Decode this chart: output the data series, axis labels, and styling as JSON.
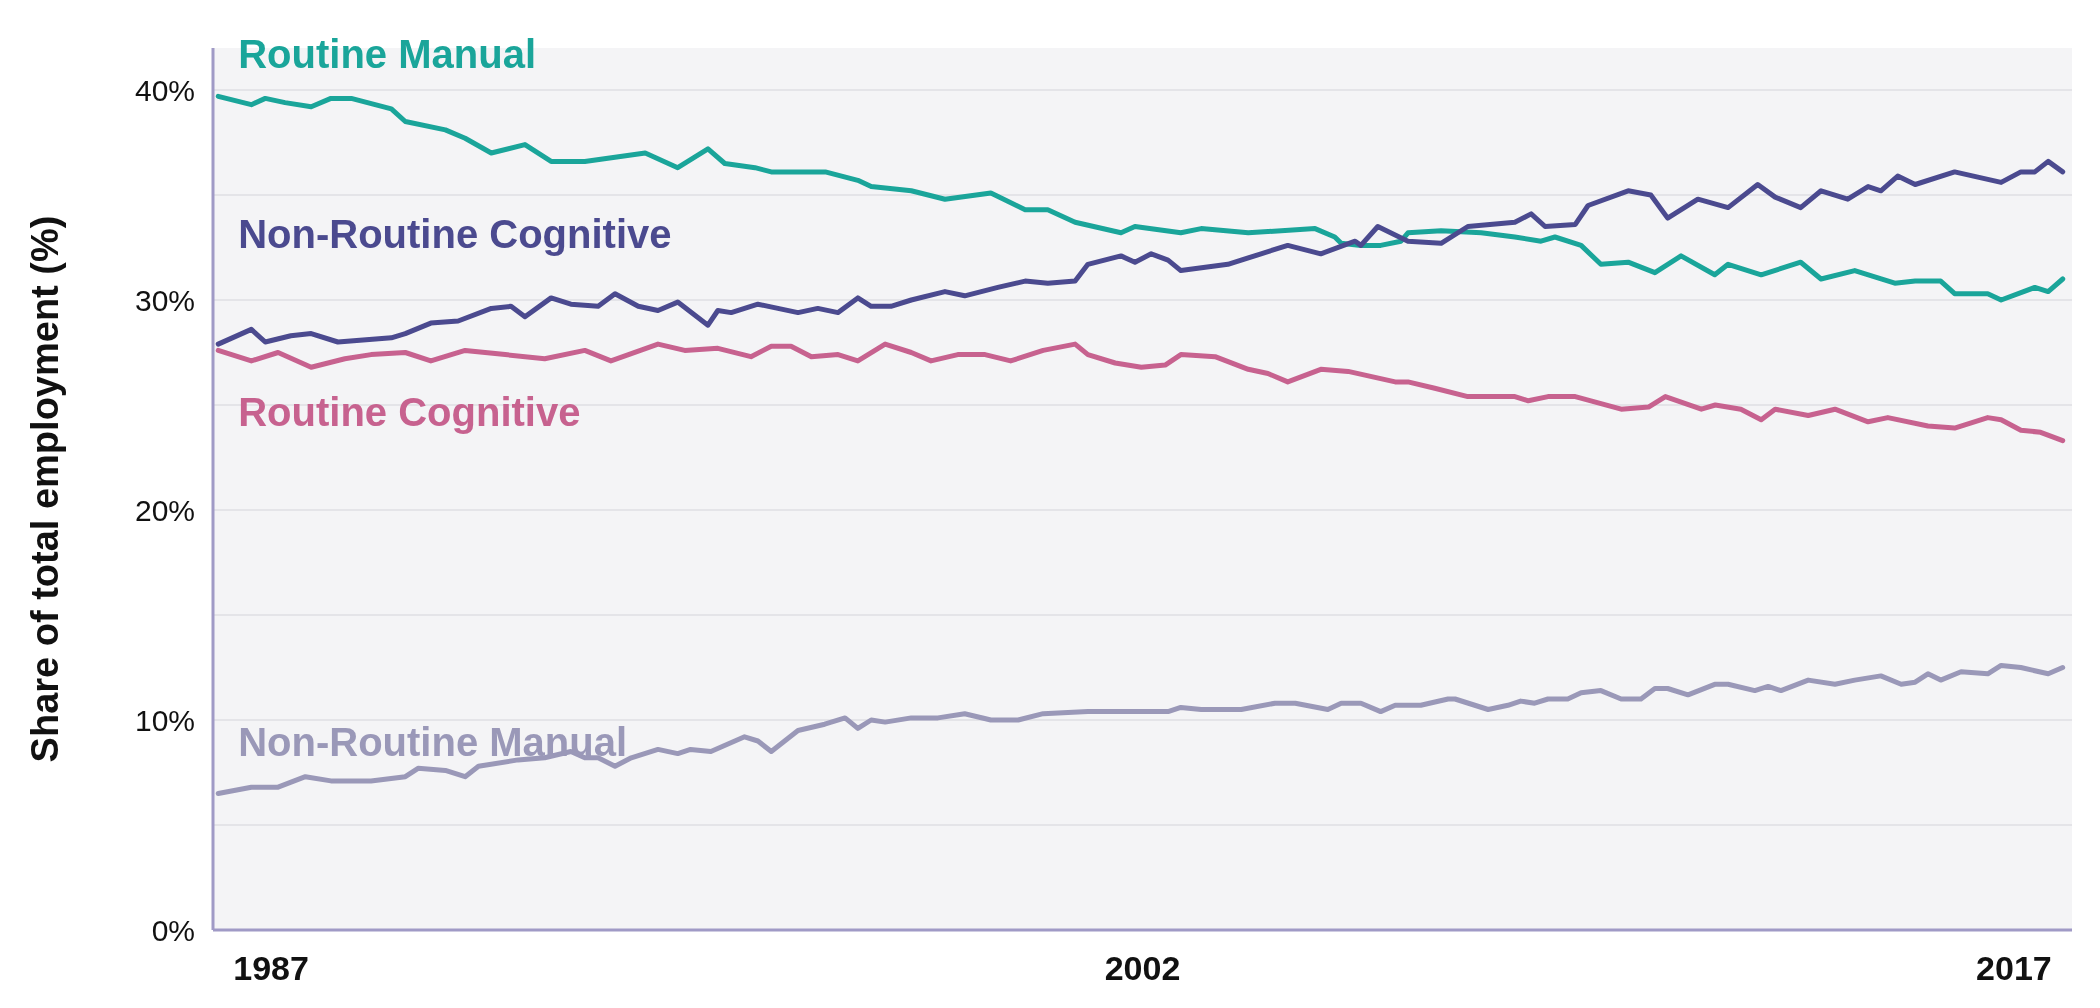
{
  "chart_data": {
    "type": "line",
    "ylabel": "Share of total employment (%)",
    "xlim": [
      1986,
      2018
    ],
    "xticks": [
      1987,
      2002,
      2017
    ],
    "ylim": [
      0,
      42
    ],
    "yticks": [
      {
        "value": 0,
        "label": "0%"
      },
      {
        "value": 5,
        "label": null
      },
      {
        "value": 10,
        "label": "10%"
      },
      {
        "value": 15,
        "label": null
      },
      {
        "value": 20,
        "label": "20%"
      },
      {
        "value": 25,
        "label": null
      },
      {
        "value": 30,
        "label": "30%"
      },
      {
        "value": 35,
        "label": null
      },
      {
        "value": 40,
        "label": "40%"
      }
    ],
    "grid": "y",
    "line_style": "solid",
    "marker": "none",
    "series": [
      {
        "name": "Routine Manual",
        "color": "#1aa59a",
        "x": [
          1986.09,
          1986.66,
          1986.9,
          1987.24,
          1987.69,
          1988.03,
          1988.38,
          1989.07,
          1989.31,
          1990.0,
          1990.34,
          1990.79,
          1991.37,
          1991.82,
          1992.4,
          1993.44,
          1994.0,
          1994.52,
          1994.81,
          1995.33,
          1995.61,
          1996.54,
          1997.1,
          1997.33,
          1998.02,
          1998.6,
          1999.39,
          1999.98,
          2000.37,
          2000.84,
          2001.63,
          2001.87,
          2002.66,
          2003.01,
          2003.82,
          2004.97,
          2005.31,
          2005.42,
          2005.76,
          2006.1,
          2006.45,
          2006.57,
          2007.14,
          2007.83,
          2008.41,
          2008.86,
          2009.1,
          2009.55,
          2009.89,
          2010.36,
          2010.82,
          2011.27,
          2011.85,
          2012.08,
          2012.65,
          2013.33,
          2013.68,
          2014.26,
          2014.95,
          2015.3,
          2015.74,
          2015.98,
          2016.55,
          2016.78,
          2017.36,
          2017.59,
          2017.84
        ],
        "values": [
          39.7,
          39.3,
          39.6,
          39.4,
          39.2,
          39.6,
          39.6,
          39.1,
          38.5,
          38.1,
          37.7,
          37.0,
          37.4,
          36.6,
          36.6,
          37.0,
          36.3,
          37.2,
          36.5,
          36.3,
          36.1,
          36.1,
          35.7,
          35.4,
          35.2,
          34.8,
          35.1,
          34.3,
          34.3,
          33.7,
          33.2,
          33.5,
          33.2,
          33.4,
          33.2,
          33.4,
          33.0,
          32.7,
          32.6,
          32.6,
          32.8,
          33.2,
          33.3,
          33.2,
          33.0,
          32.8,
          33.0,
          32.6,
          31.7,
          31.8,
          31.3,
          32.1,
          31.2,
          31.7,
          31.2,
          31.8,
          31.0,
          31.4,
          30.8,
          30.9,
          30.9,
          30.3,
          30.3,
          30.0,
          30.6,
          30.4,
          31.0
        ]
      },
      {
        "name": "Non-Routine Cognitive",
        "color": "#4b4a8f",
        "x": [
          1986.09,
          1986.66,
          1986.9,
          1987.34,
          1987.69,
          1988.15,
          1989.07,
          1989.31,
          1989.75,
          1990.22,
          1990.79,
          1991.13,
          1991.37,
          1991.82,
          1992.16,
          1992.63,
          1992.92,
          1993.32,
          1993.66,
          1994.0,
          1994.52,
          1994.69,
          1994.92,
          1995.38,
          1996.07,
          1996.41,
          1996.76,
          1997.1,
          1997.33,
          1997.67,
          1998.02,
          1998.6,
          1998.94,
          1999.51,
          1999.98,
          2000.37,
          2000.84,
          2001.06,
          2001.63,
          2001.87,
          2002.15,
          2002.44,
          2002.66,
          2003.47,
          2004.04,
          2004.5,
          2005.07,
          2005.66,
          2005.76,
          2006.05,
          2006.57,
          2007.14,
          2007.6,
          2008.41,
          2008.69,
          2008.93,
          2009.45,
          2009.67,
          2010.36,
          2010.75,
          2011.04,
          2011.56,
          2012.08,
          2012.59,
          2012.89,
          2013.33,
          2013.68,
          2014.14,
          2014.49,
          2014.71,
          2015.0,
          2015.3,
          2015.98,
          2016.78,
          2017.12,
          2017.36,
          2017.59,
          2017.84
        ],
        "values": [
          27.9,
          28.6,
          28.0,
          28.3,
          28.4,
          28.0,
          28.2,
          28.4,
          28.9,
          29.0,
          29.6,
          29.7,
          29.2,
          30.1,
          29.8,
          29.7,
          30.3,
          29.7,
          29.5,
          29.9,
          28.8,
          29.5,
          29.4,
          29.8,
          29.4,
          29.6,
          29.4,
          30.1,
          29.7,
          29.7,
          30.0,
          30.4,
          30.2,
          30.6,
          30.9,
          30.8,
          30.9,
          31.7,
          32.1,
          31.8,
          32.2,
          31.9,
          31.4,
          31.7,
          32.2,
          32.6,
          32.2,
          32.8,
          32.6,
          33.5,
          32.8,
          32.7,
          33.5,
          33.7,
          34.1,
          33.5,
          33.6,
          34.5,
          35.2,
          35.0,
          33.9,
          34.8,
          34.4,
          35.5,
          34.9,
          34.4,
          35.2,
          34.8,
          35.4,
          35.2,
          35.9,
          35.5,
          36.1,
          35.6,
          36.1,
          36.1,
          36.6,
          36.1
        ]
      },
      {
        "name": "Routine Cognitive",
        "color": "#c7628f",
        "x": [
          1986.09,
          1986.66,
          1987.12,
          1987.69,
          1988.27,
          1988.72,
          1989.31,
          1989.75,
          1990.34,
          1991.03,
          1991.71,
          1992.4,
          1992.85,
          1993.66,
          1994.12,
          1994.69,
          1995.26,
          1995.61,
          1995.95,
          1996.3,
          1996.76,
          1997.1,
          1997.57,
          1998.02,
          1998.36,
          1998.82,
          1999.29,
          1999.73,
          2000.29,
          2000.84,
          2001.06,
          2001.53,
          2001.98,
          2002.39,
          2002.66,
          2003.25,
          2003.82,
          2004.16,
          2004.5,
          2005.07,
          2005.54,
          2006.35,
          2006.57,
          2007.03,
          2007.6,
          2008.41,
          2008.64,
          2008.98,
          2009.45,
          2010.24,
          2010.71,
          2011.0,
          2011.62,
          2011.86,
          2012.3,
          2012.65,
          2012.89,
          2013.46,
          2013.92,
          2014.49,
          2014.83,
          2015.52,
          2015.98,
          2016.55,
          2016.78,
          2017.12,
          2017.46,
          2017.84
        ],
        "values": [
          27.6,
          27.1,
          27.5,
          26.8,
          27.2,
          27.4,
          27.5,
          27.1,
          27.6,
          27.4,
          27.2,
          27.6,
          27.1,
          27.9,
          27.6,
          27.7,
          27.3,
          27.8,
          27.8,
          27.3,
          27.4,
          27.1,
          27.9,
          27.5,
          27.1,
          27.4,
          27.4,
          27.1,
          27.6,
          27.9,
          27.4,
          27.0,
          26.8,
          26.9,
          27.4,
          27.3,
          26.7,
          26.5,
          26.1,
          26.7,
          26.6,
          26.1,
          26.1,
          25.8,
          25.4,
          25.4,
          25.2,
          25.4,
          25.4,
          24.8,
          24.9,
          25.4,
          24.8,
          25.0,
          24.8,
          24.3,
          24.8,
          24.5,
          24.8,
          24.2,
          24.4,
          24.0,
          23.9,
          24.4,
          24.3,
          23.8,
          23.7,
          23.3
        ]
      },
      {
        "name": "Non-Routine Manual",
        "color": "#9a98b8",
        "x": [
          1986.09,
          1986.66,
          1987.12,
          1987.59,
          1988.03,
          1988.72,
          1989.31,
          1989.53,
          1990.0,
          1990.34,
          1990.57,
          1991.25,
          1991.71,
          1992.16,
          1992.4,
          1992.63,
          1992.92,
          1993.2,
          1993.66,
          1994.0,
          1994.22,
          1994.57,
          1995.15,
          1995.38,
          1995.61,
          1996.07,
          1996.53,
          1996.88,
          1997.1,
          1997.33,
          1997.57,
          1998.02,
          1998.48,
          1998.94,
          1999.39,
          1999.86,
          2000.29,
          2001.06,
          2002.44,
          2002.66,
          2003.01,
          2003.7,
          2004.28,
          2004.63,
          2005.19,
          2005.42,
          2005.76,
          2006.1,
          2006.35,
          2006.79,
          2007.26,
          2007.38,
          2007.95,
          2008.29,
          2008.51,
          2008.75,
          2008.98,
          2009.32,
          2009.55,
          2009.89,
          2010.24,
          2010.58,
          2010.82,
          2011.04,
          2011.39,
          2011.85,
          2012.08,
          2012.54,
          2012.77,
          2012.99,
          2013.46,
          2013.92,
          2014.26,
          2014.71,
          2015.06,
          2015.3,
          2015.52,
          2015.74,
          2016.09,
          2016.55,
          2016.78,
          2017.12,
          2017.59,
          2017.84
        ],
        "values": [
          6.5,
          6.8,
          6.8,
          7.3,
          7.1,
          7.1,
          7.3,
          7.7,
          7.6,
          7.3,
          7.8,
          8.1,
          8.2,
          8.5,
          8.2,
          8.2,
          7.8,
          8.2,
          8.6,
          8.4,
          8.6,
          8.5,
          9.2,
          9.0,
          8.5,
          9.5,
          9.8,
          10.1,
          9.6,
          10.0,
          9.9,
          10.1,
          10.1,
          10.3,
          10.0,
          10.0,
          10.3,
          10.4,
          10.4,
          10.6,
          10.5,
          10.5,
          10.8,
          10.8,
          10.5,
          10.8,
          10.8,
          10.4,
          10.7,
          10.7,
          11.0,
          11.0,
          10.5,
          10.7,
          10.9,
          10.8,
          11.0,
          11.0,
          11.3,
          11.4,
          11.0,
          11.0,
          11.5,
          11.5,
          11.2,
          11.7,
          11.7,
          11.4,
          11.6,
          11.4,
          11.9,
          11.7,
          11.9,
          12.1,
          11.7,
          11.8,
          12.2,
          11.9,
          12.3,
          12.2,
          12.6,
          12.5,
          12.2,
          12.5
        ]
      }
    ]
  }
}
